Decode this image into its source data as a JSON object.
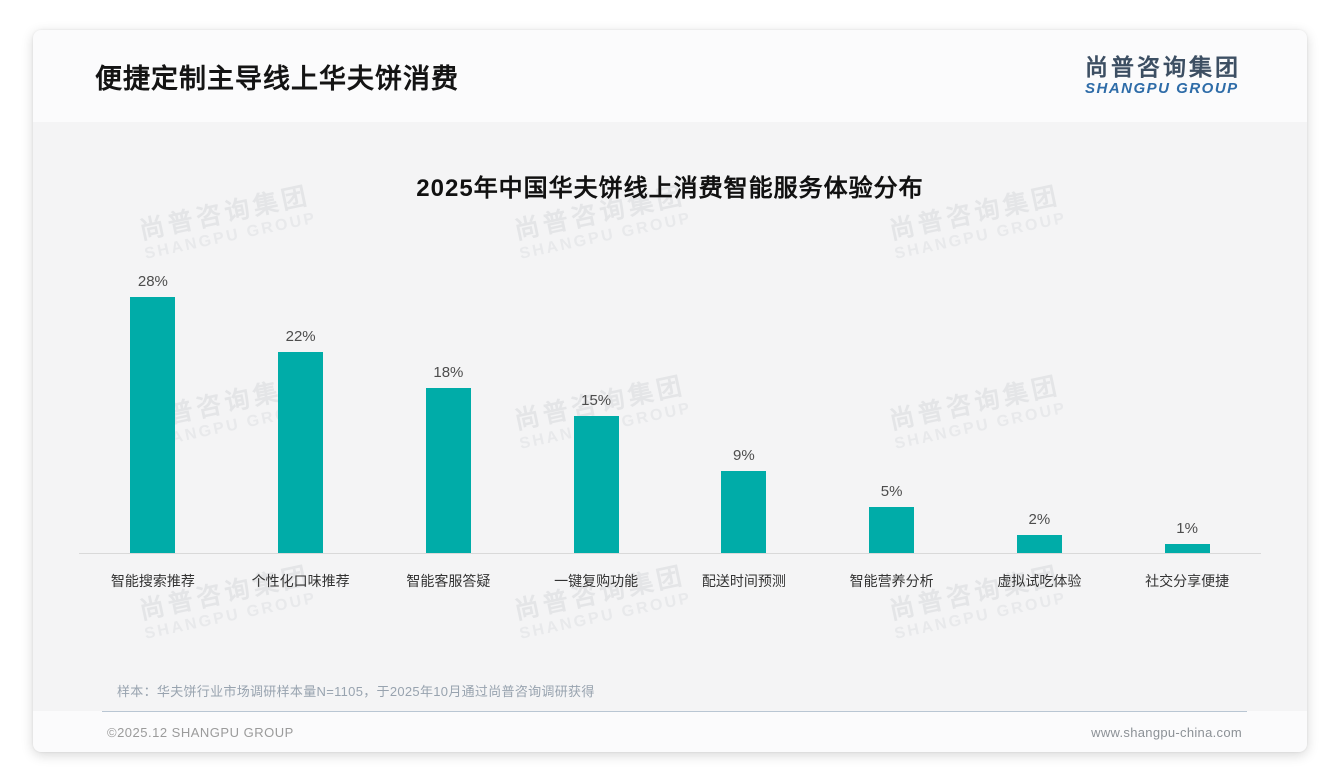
{
  "header": {
    "title": "便捷定制主导线上华夫饼消费",
    "logo": {
      "cn": "尚普咨询集团",
      "en": "SHANGPU GROUP"
    }
  },
  "watermark": {
    "cn": "尚普咨询集团",
    "en": "SHANGPU GROUP"
  },
  "chart_data": {
    "type": "bar",
    "title": "2025年中国华夫饼线上消费智能服务体验分布",
    "categories": [
      "智能搜索推荐",
      "个性化口味推荐",
      "智能客服答疑",
      "一键复购功能",
      "配送时间预测",
      "智能营养分析",
      "虚拟试吃体验",
      "社交分享便捷"
    ],
    "values": [
      28,
      22,
      18,
      15,
      9,
      5,
      2,
      1
    ],
    "data_labels": [
      "28%",
      "22%",
      "18%",
      "15%",
      "9%",
      "5%",
      "2%",
      "1%"
    ],
    "unit": "%",
    "xlabel": "",
    "ylabel": "",
    "ylim": [
      0,
      30
    ],
    "grid": false,
    "legend": false,
    "bar_color": "#00ACA8",
    "axis_line_color": "#d9d9d9"
  },
  "note": "样本：华夫饼行业市场调研样本量N=1105，于2025年10月通过尚普咨询调研获得",
  "footer": {
    "copyright": "©2025.12 SHANGPU GROUP",
    "website": "www.shangpu-china.com"
  },
  "colors": {
    "bar": "#00ACA8",
    "logo_cn": "#3d4f63",
    "logo_en": "#2e6ca8",
    "panel_bg": "#f4f4f5"
  }
}
